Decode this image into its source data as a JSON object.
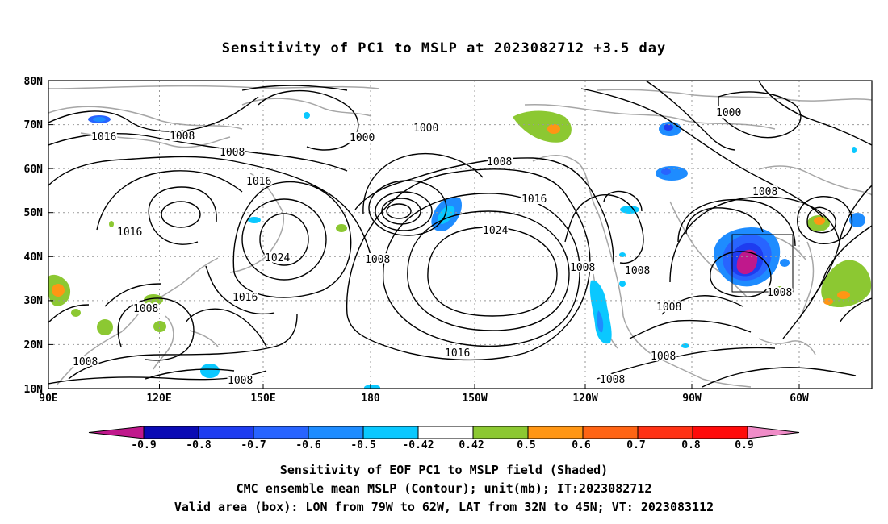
{
  "title": "Sensitivity of PC1 to MSLP at 2023082712 +3.5 day",
  "axes": {
    "lat_labels": [
      "80N",
      "70N",
      "60N",
      "50N",
      "40N",
      "30N",
      "20N",
      "10N"
    ],
    "lon_labels": [
      "90E",
      "120E",
      "150E",
      "180",
      "150W",
      "120W",
      "90W",
      "60W"
    ]
  },
  "contour_labels": [
    "1016",
    "1008",
    "1008",
    "1000",
    "1000",
    "1008",
    "1000",
    "1016",
    "1016",
    "1008",
    "1016",
    "1024",
    "1024",
    "1008",
    "1008",
    "1016",
    "1008",
    "1008",
    "1008",
    "1008",
    "1016",
    "1008",
    "1008",
    "1008",
    "1008"
  ],
  "colorbar": {
    "labels": [
      "-0.9",
      "-0.8",
      "-0.7",
      "-0.6",
      "-0.5",
      "-0.42",
      "0.42",
      "0.5",
      "0.6",
      "0.7",
      "0.8",
      "0.9"
    ],
    "colors": [
      "#c0188c",
      "#0a0ab4",
      "#1e3cf0",
      "#2864ff",
      "#1e8cff",
      "#0ac8ff",
      "#ffffff",
      "#8cc832",
      "#ff9614",
      "#ff6414",
      "#ff3214",
      "#ff0a0a",
      "#f08cc8"
    ]
  },
  "captions": [
    "Sensitivity of EOF PC1 to MSLP field (Shaded)",
    "CMC ensemble mean MSLP (Contour); unit(mb); IT:2023082712",
    "Valid area (box): LON from 79W to 62W, LAT from 32N to 45N; VT: 2023083112"
  ]
}
